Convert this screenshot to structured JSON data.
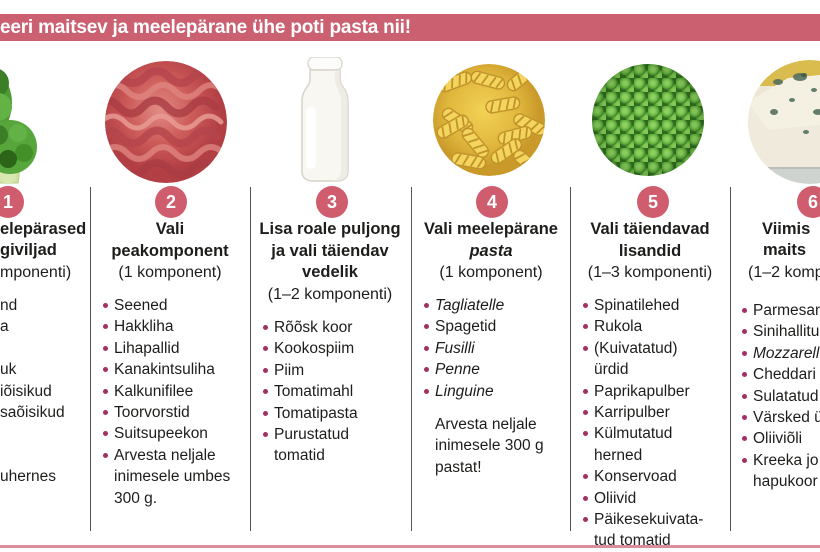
{
  "header": {
    "title": "eeri maitsev ja meelepärane ühe poti pasta nii!"
  },
  "colors": {
    "accent_pink": "#cb6071",
    "bullet_magenta": "#a23061"
  },
  "images": {
    "col1": "broccoli-photo",
    "col2": "minced-meat-photo",
    "col3": "milk-bottle-photo",
    "col4": "fusilli-pasta-photo",
    "col5": "green-peas-photo",
    "col6": "blue-cheese-photo"
  },
  "columns": [
    {
      "number": "1",
      "heading": [
        "elepärased",
        "giviljad"
      ],
      "subheading": "mponenti)",
      "items": [
        "nd",
        "a",
        "",
        "uk",
        "iõisikud",
        "saõisikud",
        "",
        "",
        "uhernes"
      ]
    },
    {
      "number": "2",
      "heading": [
        "Vali",
        "peakomponent"
      ],
      "subheading": "(1 komponent)",
      "items": [
        "Seened",
        "Hakkliha",
        "Lihapallid",
        "Kanakintsuliha",
        "Kalkunifilee",
        "Toorvorstid",
        "Suitsupeekon",
        "Arvesta neljale\ninimesele umbes\n300 g."
      ]
    },
    {
      "number": "3",
      "heading": [
        "Lisa roale puljong",
        "ja vali täiendav",
        "vedelik"
      ],
      "subheading": "(1–2 komponenti)",
      "items": [
        "Rõõsk koor",
        "Kookospiim",
        "Piim",
        "Tomatimahl",
        "Tomatipasta",
        "Purustatud\ntomatid"
      ]
    },
    {
      "number": "4",
      "heading": [
        "Vali meelepärane",
        "pasta"
      ],
      "subheading": "(1 komponent)",
      "items": [
        {
          "text": "Tagliatelle",
          "style": "italic"
        },
        {
          "text": "Spagetid"
        },
        {
          "text": "Fusilli",
          "style": "italic"
        },
        {
          "text": "Penne",
          "style": "italic"
        },
        {
          "text": "Linguine",
          "style": "italic"
        }
      ],
      "note": "Arvesta neljale\ninimesele 300 g\npastat!"
    },
    {
      "number": "5",
      "heading": [
        "Vali täiendavad",
        "lisandid"
      ],
      "subheading": "(1–3 komponenti)",
      "items": [
        "Spinatilehed",
        "Rukola",
        "(Kuivatatud)\nürdid",
        "Paprikapulber",
        "Karripulber",
        "Külmutatud\nherned",
        "Konservoad",
        "Oliivid",
        "Päikesekuivata-\ntud tomatid"
      ]
    },
    {
      "number": "6",
      "heading": [
        "Viimis",
        "maits"
      ],
      "subheading": "(1–2 komp",
      "items": [
        "Parmesan",
        "Sinihallitu",
        {
          "text": "Mozzarell",
          "style": "italic"
        },
        "Cheddari",
        "Sulatatud",
        "Värsked ü",
        "Oliiviõli",
        "Kreeka jo\nhapukoor"
      ]
    }
  ]
}
